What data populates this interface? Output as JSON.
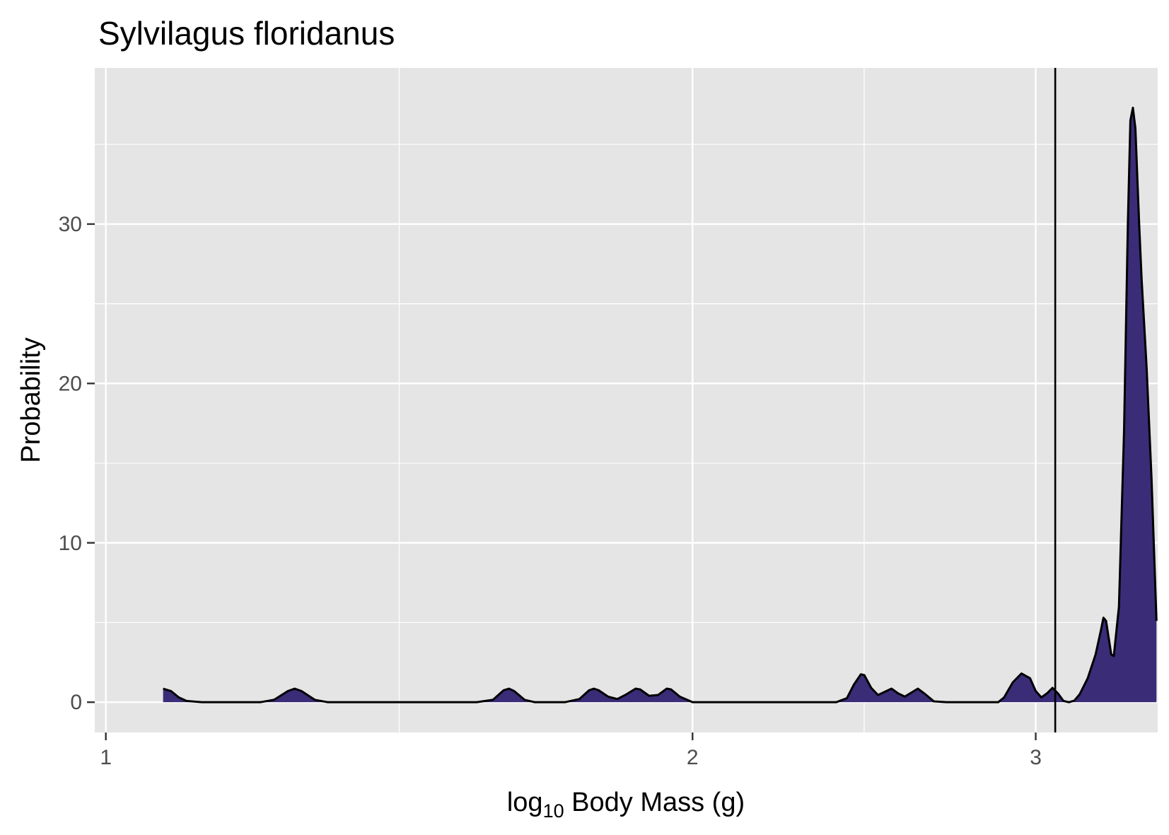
{
  "chart_data": {
    "type": "area",
    "title": "Sylvilagus floridanus",
    "xlabel_main": "log",
    "xlabel_sub": "10",
    "xlabel_rest": " Body Mass (g)",
    "ylabel": "Probability",
    "xscale": "log10",
    "xlim": [
      0.987,
      3.465
    ],
    "ylim": [
      -1.9,
      39.8
    ],
    "xticks": [
      {
        "value": 1,
        "label": "1"
      },
      {
        "value": 2,
        "label": "2"
      },
      {
        "value": 3,
        "label": "3"
      }
    ],
    "x_minor_grid": [
      1.4142,
      2.4495
    ],
    "yticks": [
      {
        "value": 0,
        "label": "0"
      },
      {
        "value": 10,
        "label": "10"
      },
      {
        "value": 20,
        "label": "20"
      },
      {
        "value": 30,
        "label": "30"
      }
    ],
    "y_minor_grid": [
      5,
      15,
      25,
      35
    ],
    "grid": true,
    "vline_x": 3.07,
    "fill_color": "#3b2c78",
    "panel_color": "#e5e5e5",
    "grid_color": "#ffffff",
    "series": [
      {
        "points": [
          [
            1.07,
            0.85
          ],
          [
            1.08,
            0.7
          ],
          [
            1.09,
            0.3
          ],
          [
            1.1,
            0.08
          ],
          [
            1.12,
            0.0
          ],
          [
            1.2,
            0.0
          ],
          [
            1.22,
            0.15
          ],
          [
            1.24,
            0.7
          ],
          [
            1.25,
            0.85
          ],
          [
            1.26,
            0.7
          ],
          [
            1.28,
            0.15
          ],
          [
            1.3,
            0.0
          ],
          [
            1.38,
            0.0
          ],
          [
            1.4,
            0.0
          ],
          [
            1.45,
            0.0
          ],
          [
            1.5,
            0.0
          ],
          [
            1.55,
            0.0
          ],
          [
            1.58,
            0.15
          ],
          [
            1.6,
            0.75
          ],
          [
            1.61,
            0.85
          ],
          [
            1.62,
            0.7
          ],
          [
            1.64,
            0.15
          ],
          [
            1.66,
            0.0
          ],
          [
            1.72,
            0.0
          ],
          [
            1.75,
            0.2
          ],
          [
            1.77,
            0.75
          ],
          [
            1.78,
            0.85
          ],
          [
            1.79,
            0.75
          ],
          [
            1.81,
            0.35
          ],
          [
            1.83,
            0.2
          ],
          [
            1.85,
            0.5
          ],
          [
            1.87,
            0.85
          ],
          [
            1.88,
            0.8
          ],
          [
            1.9,
            0.4
          ],
          [
            1.92,
            0.45
          ],
          [
            1.94,
            0.85
          ],
          [
            1.95,
            0.8
          ],
          [
            1.97,
            0.35
          ],
          [
            2.0,
            0.0
          ],
          [
            2.1,
            0.0
          ],
          [
            2.2,
            0.0
          ],
          [
            2.3,
            0.0
          ],
          [
            2.37,
            0.0
          ],
          [
            2.4,
            0.25
          ],
          [
            2.42,
            1.1
          ],
          [
            2.44,
            1.75
          ],
          [
            2.45,
            1.7
          ],
          [
            2.47,
            0.9
          ],
          [
            2.49,
            0.45
          ],
          [
            2.51,
            0.65
          ],
          [
            2.53,
            0.85
          ],
          [
            2.55,
            0.55
          ],
          [
            2.57,
            0.35
          ],
          [
            2.59,
            0.6
          ],
          [
            2.61,
            0.85
          ],
          [
            2.63,
            0.55
          ],
          [
            2.66,
            0.05
          ],
          [
            2.7,
            0.0
          ],
          [
            2.8,
            0.0
          ],
          [
            2.85,
            0.0
          ],
          [
            2.87,
            0.0
          ],
          [
            2.89,
            0.3
          ],
          [
            2.92,
            1.25
          ],
          [
            2.95,
            1.8
          ],
          [
            2.98,
            1.5
          ],
          [
            3.0,
            0.7
          ],
          [
            3.02,
            0.3
          ],
          [
            3.04,
            0.55
          ],
          [
            3.06,
            0.9
          ],
          [
            3.08,
            0.55
          ],
          [
            3.1,
            0.08
          ],
          [
            3.12,
            0.0
          ],
          [
            3.14,
            0.1
          ],
          [
            3.16,
            0.5
          ],
          [
            3.19,
            1.5
          ],
          [
            3.22,
            3.0
          ],
          [
            3.24,
            4.5
          ],
          [
            3.25,
            5.3
          ],
          [
            3.26,
            5.1
          ],
          [
            3.28,
            3.0
          ],
          [
            3.29,
            2.9
          ],
          [
            3.31,
            6.0
          ],
          [
            3.33,
            17.0
          ],
          [
            3.345,
            30.0
          ],
          [
            3.355,
            36.5
          ],
          [
            3.365,
            37.3
          ],
          [
            3.375,
            36.0
          ],
          [
            3.39,
            30.0
          ],
          [
            3.4,
            26.5
          ],
          [
            3.42,
            21.0
          ],
          [
            3.44,
            14.0
          ],
          [
            3.46,
            5.1
          ]
        ]
      }
    ]
  }
}
